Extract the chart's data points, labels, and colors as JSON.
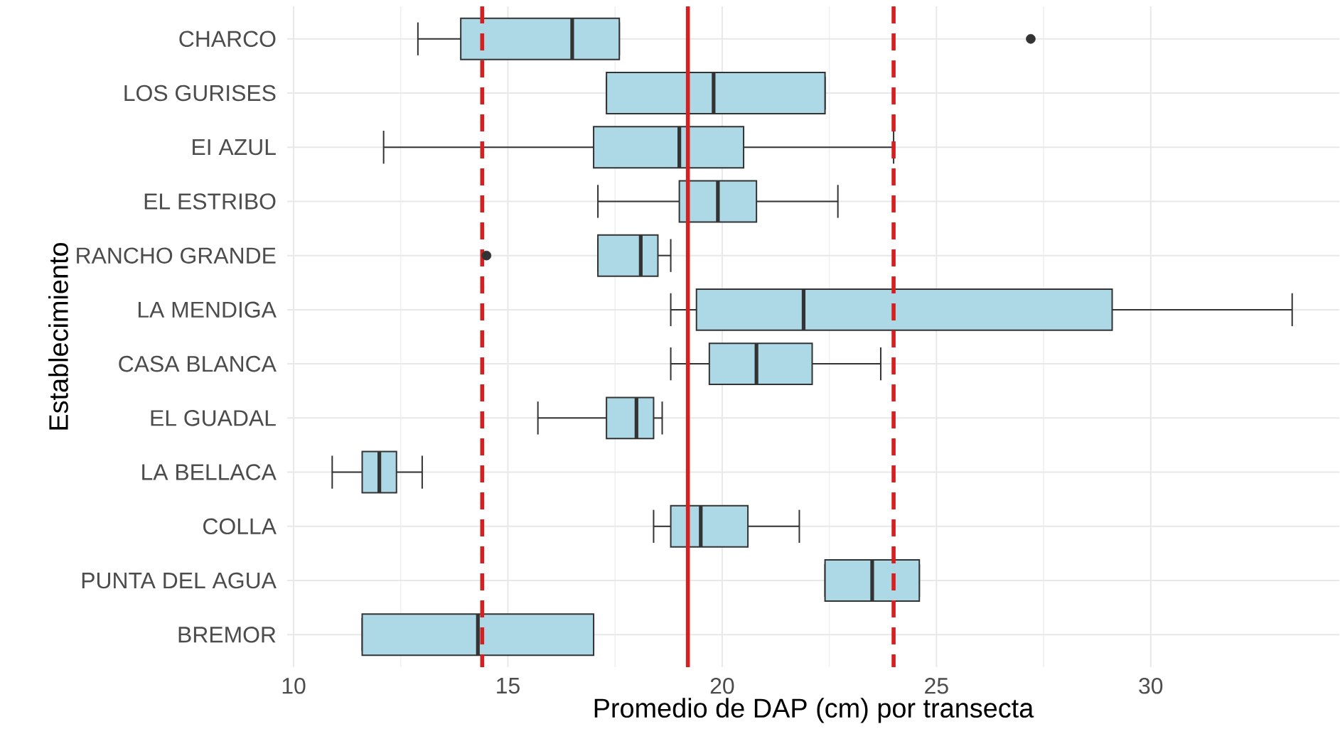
{
  "chart_data": {
    "type": "box",
    "orientation": "horizontal",
    "xlabel": "Promedio de DAP (cm) por transecta",
    "ylabel": "Establecimiento",
    "categories": [
      "CHARCO",
      "LOS GURISES",
      "EI AZUL",
      "EL ESTRIBO",
      "RANCHO GRANDE",
      "LA MENDIGA",
      "CASA BLANCA",
      "EL GUADAL",
      "LA BELLACA",
      "COLLA",
      "PUNTA DEL AGUA",
      "BREMOR"
    ],
    "boxes": [
      {
        "low": 12.9,
        "q1": 13.9,
        "median": 16.5,
        "q3": 17.6,
        "high": 17.6,
        "outliers": [
          27.2
        ]
      },
      {
        "low": 17.3,
        "q1": 17.3,
        "median": 19.8,
        "q3": 22.4,
        "high": 22.4
      },
      {
        "low": 12.1,
        "q1": 17.0,
        "median": 19.0,
        "q3": 20.5,
        "high": 24.0
      },
      {
        "low": 17.1,
        "q1": 19.0,
        "median": 19.9,
        "q3": 20.8,
        "high": 22.7
      },
      {
        "low": 17.1,
        "q1": 17.1,
        "median": 18.1,
        "q3": 18.5,
        "high": 18.8,
        "outliers": [
          14.5
        ]
      },
      {
        "low": 18.8,
        "q1": 19.4,
        "median": 21.9,
        "q3": 29.1,
        "high": 33.3
      },
      {
        "low": 18.8,
        "q1": 19.7,
        "median": 20.8,
        "q3": 22.1,
        "high": 23.7
      },
      {
        "low": 15.7,
        "q1": 17.3,
        "median": 18.0,
        "q3": 18.4,
        "high": 18.6
      },
      {
        "low": 10.9,
        "q1": 11.6,
        "median": 12.0,
        "q3": 12.4,
        "high": 13.0
      },
      {
        "low": 18.4,
        "q1": 18.8,
        "median": 19.5,
        "q3": 20.6,
        "high": 21.8
      },
      {
        "low": 22.4,
        "q1": 22.4,
        "median": 23.5,
        "q3": 24.6,
        "high": 24.6
      },
      {
        "low": 11.6,
        "q1": 11.6,
        "median": 14.3,
        "q3": 17.0,
        "high": 17.0
      }
    ],
    "color": "#add8e6",
    "xlim": [
      9.85,
      34.4
    ],
    "xticks": [
      10,
      15,
      20,
      25,
      30
    ],
    "grid": true,
    "ref_lines": [
      {
        "axis": "x",
        "value": 19.2,
        "color": "#d42020",
        "line_style": "solid"
      },
      {
        "axis": "x",
        "value": 14.4,
        "color": "#d42020",
        "line_style": "dashed"
      },
      {
        "axis": "x",
        "value": 24.0,
        "color": "#d42020",
        "line_style": "dashed"
      }
    ]
  }
}
